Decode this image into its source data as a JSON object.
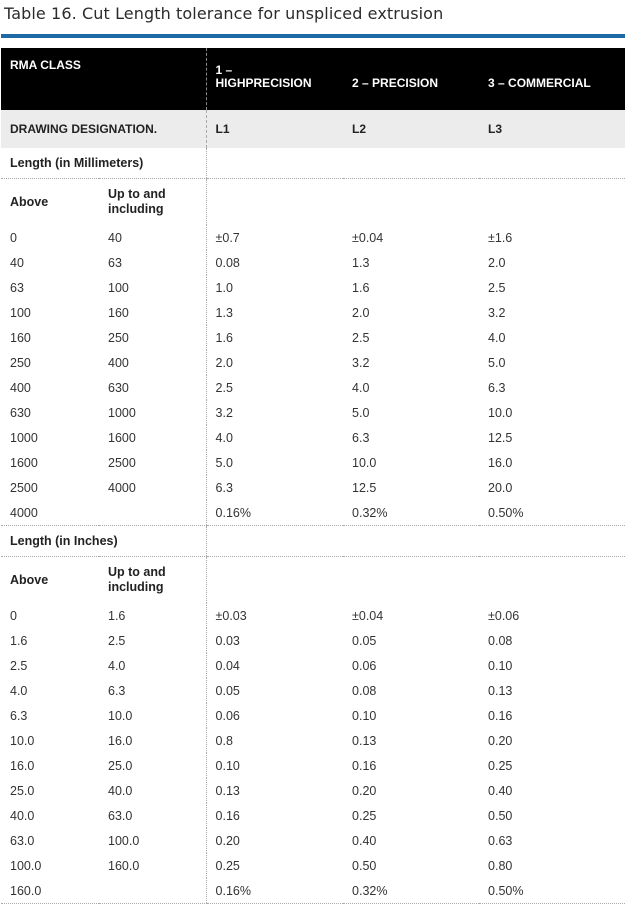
{
  "title": "Table 16. Cut Length tolerance for unspliced extrusion",
  "colors": {
    "title_rule": "#1f6aa5",
    "header_bg": "#000000",
    "designation_bg": "#ececec"
  },
  "header": {
    "rma_class": "RMA CLASS",
    "col1_line1": "1 –",
    "col1_line2": "HIGHPRECISION",
    "col2": "2 – PRECISION",
    "col3": "3 – COMMERCIAL"
  },
  "designation": {
    "label": "DRAWING DESIGNATION.",
    "l1": "L1",
    "l2": "L2",
    "l3": "L3"
  },
  "mm_section": {
    "heading": "Length (in Millimeters)",
    "above": "Above",
    "upto_line1": "Up to and",
    "upto_line2": "including",
    "rows": [
      {
        "above": "0",
        "upto": "40",
        "l1": "±0.7",
        "l2": "±0.04",
        "l3": "±1.6"
      },
      {
        "above": "40",
        "upto": "63",
        "l1": "0.08",
        "l2": "1.3",
        "l3": "2.0"
      },
      {
        "above": "63",
        "upto": "100",
        "l1": "1.0",
        "l2": "1.6",
        "l3": "2.5"
      },
      {
        "above": "100",
        "upto": "160",
        "l1": "1.3",
        "l2": "2.0",
        "l3": "3.2"
      },
      {
        "above": "160",
        "upto": "250",
        "l1": "1.6",
        "l2": "2.5",
        "l3": "4.0"
      },
      {
        "above": "250",
        "upto": "400",
        "l1": "2.0",
        "l2": "3.2",
        "l3": "5.0"
      },
      {
        "above": "400",
        "upto": "630",
        "l1": "2.5",
        "l2": "4.0",
        "l3": "6.3"
      },
      {
        "above": "630",
        "upto": "1000",
        "l1": "3.2",
        "l2": "5.0",
        "l3": "10.0"
      },
      {
        "above": "1000",
        "upto": "1600",
        "l1": "4.0",
        "l2": "6.3",
        "l3": "12.5"
      },
      {
        "above": "1600",
        "upto": "2500",
        "l1": "5.0",
        "l2": "10.0",
        "l3": "16.0"
      },
      {
        "above": "2500",
        "upto": "4000",
        "l1": "6.3",
        "l2": "12.5",
        "l3": "20.0"
      },
      {
        "above": "4000",
        "upto": "",
        "l1": "0.16%",
        "l2": "0.32%",
        "l3": "0.50%"
      }
    ]
  },
  "in_section": {
    "heading": "Length (in Inches)",
    "above": "Above",
    "upto_line1": "Up to and",
    "upto_line2": "including",
    "rows": [
      {
        "above": "0",
        "upto": "1.6",
        "l1": "±0.03",
        "l2": "±0.04",
        "l3": "±0.06"
      },
      {
        "above": "1.6",
        "upto": "2.5",
        "l1": "0.03",
        "l2": "0.05",
        "l3": "0.08"
      },
      {
        "above": "2.5",
        "upto": "4.0",
        "l1": "0.04",
        "l2": "0.06",
        "l3": "0.10"
      },
      {
        "above": "4.0",
        "upto": "6.3",
        "l1": "0.05",
        "l2": "0.08",
        "l3": "0.13"
      },
      {
        "above": "6.3",
        "upto": "10.0",
        "l1": "0.06",
        "l2": "0.10",
        "l3": "0.16"
      },
      {
        "above": "10.0",
        "upto": "16.0",
        "l1": "0.8",
        "l2": "0.13",
        "l3": "0.20"
      },
      {
        "above": "16.0",
        "upto": "25.0",
        "l1": "0.10",
        "l2": "0.16",
        "l3": "0.25"
      },
      {
        "above": "25.0",
        "upto": "40.0",
        "l1": "0.13",
        "l2": "0.20",
        "l3": "0.40"
      },
      {
        "above": "40.0",
        "upto": "63.0",
        "l1": "0.16",
        "l2": "0.25",
        "l3": "0.50"
      },
      {
        "above": "63.0",
        "upto": "100.0",
        "l1": "0.20",
        "l2": "0.40",
        "l3": "0.63"
      },
      {
        "above": "100.0",
        "upto": "160.0",
        "l1": "0.25",
        "l2": "0.50",
        "l3": "0.80"
      },
      {
        "above": "160.0",
        "upto": "",
        "l1": "0.16%",
        "l2": "0.32%",
        "l3": "0.50%"
      }
    ]
  }
}
